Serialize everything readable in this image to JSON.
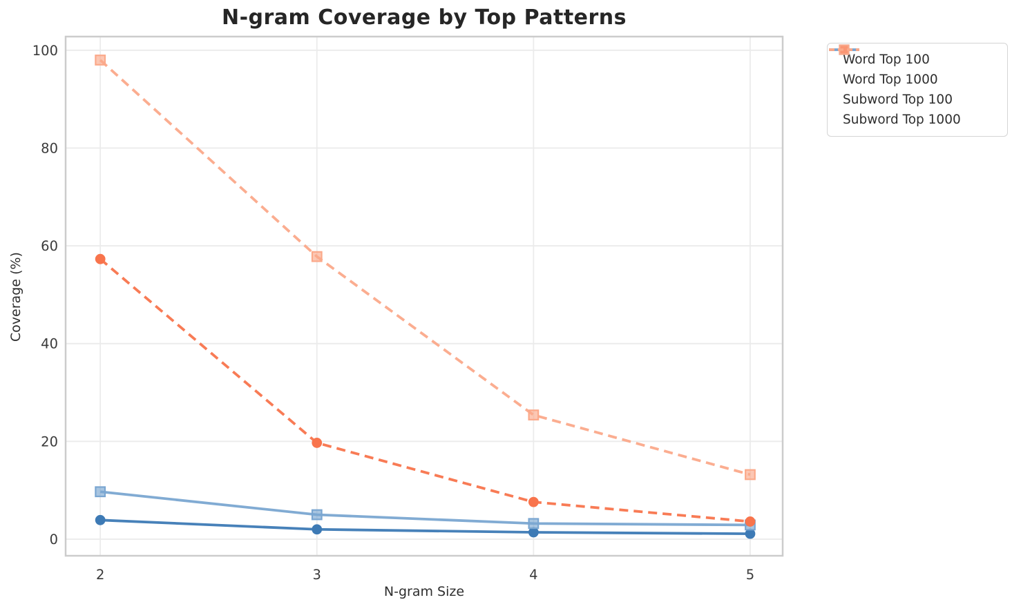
{
  "chart_data": {
    "type": "line",
    "title": "N-gram Coverage by Top Patterns",
    "xlabel": "N-gram Size",
    "ylabel": "Coverage (%)",
    "x": [
      2,
      3,
      4,
      5
    ],
    "x_tick_labels": [
      "2",
      "3",
      "4",
      "5"
    ],
    "y_ticks": [
      0,
      20,
      40,
      60,
      80,
      100
    ],
    "xlim": [
      1.84,
      5.15
    ],
    "ylim": [
      -3.4,
      102.8
    ],
    "grid": true,
    "legend_position": "outside-upper-right",
    "series": [
      {
        "name": "Word Top 100",
        "color": "#3d7ab5",
        "marker": "circle",
        "line_style": "solid",
        "values": [
          3.9,
          2.0,
          1.4,
          1.1
        ]
      },
      {
        "name": "Word Top 1000",
        "color": "#7aa6d1",
        "marker": "square",
        "line_style": "solid",
        "values": [
          9.7,
          5.0,
          3.2,
          2.9
        ]
      },
      {
        "name": "Subword Top 100",
        "color": "#f8744c",
        "marker": "circle",
        "line_style": "dashed",
        "values": [
          57.3,
          19.7,
          7.6,
          3.6
        ]
      },
      {
        "name": "Subword Top 1000",
        "color": "#fba98a",
        "marker": "square",
        "line_style": "dashed",
        "values": [
          98.0,
          57.8,
          25.4,
          13.2
        ]
      }
    ],
    "style_colors": {
      "grid": "#ebebeb",
      "spine": "#cccccc",
      "tick_text": "#3a3a3a",
      "title_text": "#262626",
      "legend_border": "#d4d4d4"
    }
  }
}
